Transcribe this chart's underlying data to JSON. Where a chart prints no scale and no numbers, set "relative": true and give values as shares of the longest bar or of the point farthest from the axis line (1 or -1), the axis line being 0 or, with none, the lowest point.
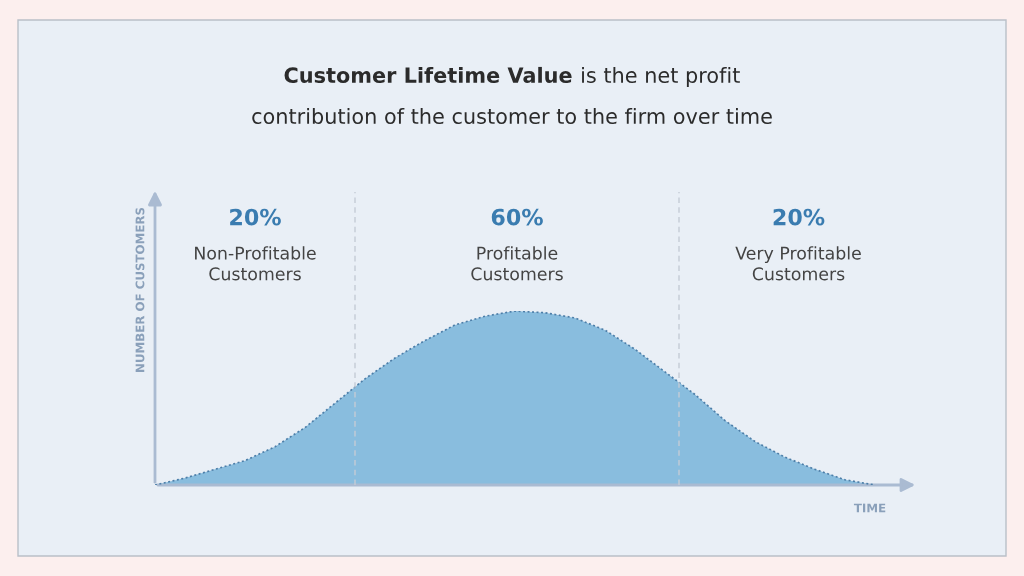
{
  "chart_data": {
    "type": "area",
    "title": "Customer Lifetime Value",
    "subtitle": "is the net profit contribution of the customer to the firm over time",
    "xlabel": "TIME",
    "ylabel": "NUMBER OF CUSTOMERS",
    "relative": true,
    "categories": [
      null,
      null,
      null,
      null,
      null,
      null,
      null,
      null,
      null,
      null,
      null,
      null,
      null,
      null,
      null,
      null,
      null,
      null,
      null,
      null,
      null,
      null,
      null,
      null,
      null
    ],
    "line_style": "dotted",
    "series": [
      {
        "color": "#4d7ea8",
        "values": [
          0,
          0.04,
          0.09,
          0.14,
          0.22,
          0.33,
          0.47,
          0.61,
          0.73,
          0.83,
          0.92,
          0.97,
          1.0,
          0.99,
          0.96,
          0.89,
          0.78,
          0.65,
          0.52,
          0.37,
          0.25,
          0.16,
          0.09,
          0.03,
          0
        ]
      }
    ],
    "annotations": [
      "20%",
      "Non-Profitable\nCustomers",
      "60%",
      "Profitable\nCustomers",
      "20%",
      "Very Profitable\nCustomers"
    ]
  }
}
